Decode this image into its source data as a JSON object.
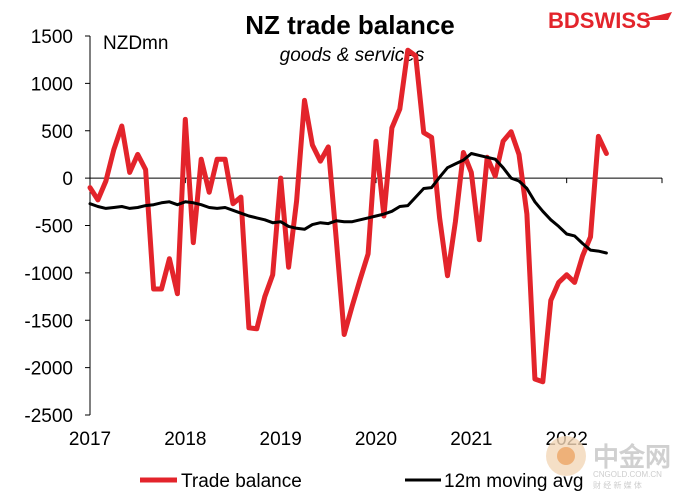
{
  "brand": {
    "logo_text": "BDSWISS",
    "accent_color": "#e3242b"
  },
  "watermark": {
    "title": "中金网",
    "url": "CNGOLD.COM.CN",
    "tagline": "财 经 新 媒 体"
  },
  "chart_data": {
    "type": "line",
    "title": "NZ trade balance",
    "subtitle": "goods & services",
    "ylabel": "NZDmn",
    "xlabel": "",
    "ylim": [
      -2500,
      1500
    ],
    "yticks": [
      1500,
      1000,
      500,
      0,
      -500,
      -1000,
      -1500,
      -2000,
      -2500
    ],
    "x_tick_labels": [
      "2017",
      "2018",
      "2019",
      "2020",
      "2021",
      "2022"
    ],
    "x_start_year": 2017,
    "months_per_year": 12,
    "grid": false,
    "legend_position": "bottom",
    "series": [
      {
        "name": "Trade balance",
        "color": "#e3242b",
        "values": [
          -100,
          -230,
          -30,
          300,
          550,
          60,
          250,
          90,
          -1170,
          -1170,
          -850,
          -1220,
          620,
          -680,
          200,
          -150,
          200,
          200,
          -270,
          -200,
          -1580,
          -1590,
          -1250,
          -1020,
          0,
          -940,
          -240,
          820,
          350,
          180,
          330,
          -650,
          -1650,
          -1350,
          -1070,
          -800,
          390,
          -400,
          530,
          730,
          1350,
          1290,
          480,
          430,
          -420,
          -1030,
          -460,
          270,
          60,
          -650,
          220,
          20,
          390,
          490,
          250,
          -380,
          -2120,
          -2150,
          -1290,
          -1100,
          -1020,
          -1100,
          -820,
          -620,
          440,
          260
        ]
      },
      {
        "name": "12m moving avg",
        "color": "#000000",
        "values": [
          -270,
          -300,
          -320,
          -310,
          -300,
          -320,
          -310,
          -290,
          -280,
          -260,
          -250,
          -280,
          -250,
          -260,
          -280,
          -310,
          -320,
          -310,
          -340,
          -370,
          -400,
          -420,
          -440,
          -470,
          -460,
          -510,
          -530,
          -540,
          -490,
          -470,
          -480,
          -450,
          -460,
          -460,
          -440,
          -420,
          -400,
          -380,
          -350,
          -300,
          -290,
          -200,
          -110,
          -100,
          10,
          110,
          150,
          190,
          260,
          240,
          220,
          200,
          110,
          0,
          -30,
          -110,
          -250,
          -350,
          -440,
          -510,
          -590,
          -610,
          -690,
          -760,
          -770,
          -790
        ]
      }
    ]
  }
}
